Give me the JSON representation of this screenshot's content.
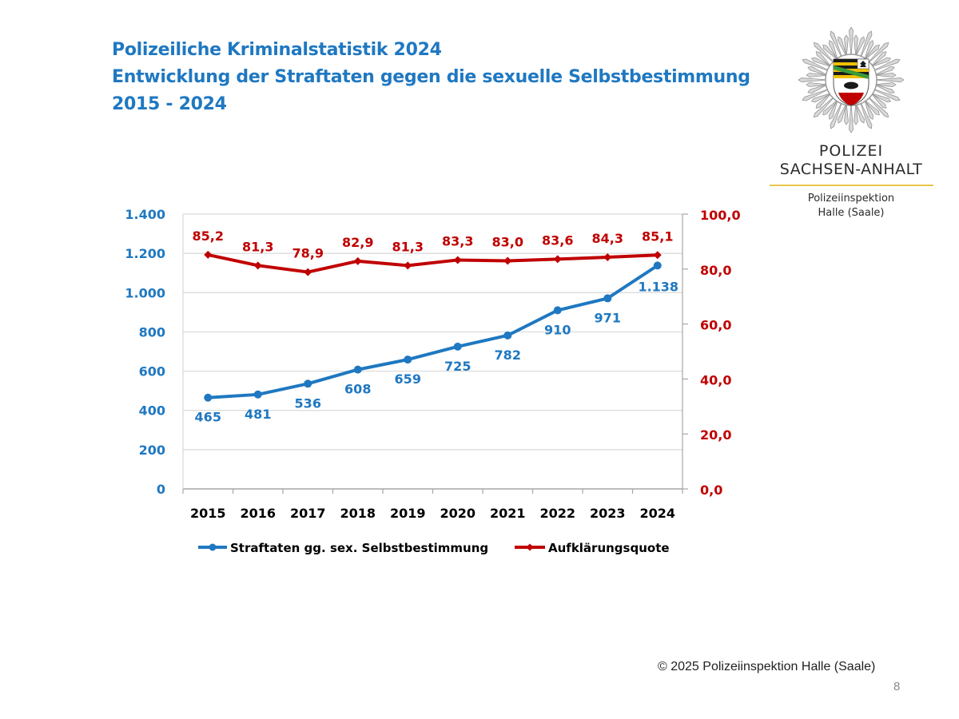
{
  "slide": {
    "title_lines": [
      "Polizeiliche Kriminalstatistik 2024",
      "Entwicklung der Straftaten gegen die sexuelle Selbstbestimmung",
      "2015 - 2024"
    ],
    "logo": {
      "line1": "POLIZEI",
      "line2": "SACHSEN-ANHALT",
      "line3": "Polizeiinspektion",
      "line4": "Halle (Saale)"
    },
    "footer": "© 2025 Polizeiinspektion Halle (Saale)",
    "page_number": "8"
  },
  "chart_data": {
    "type": "line",
    "title": "",
    "categories": [
      "2015",
      "2016",
      "2017",
      "2018",
      "2019",
      "2020",
      "2021",
      "2022",
      "2023",
      "2024"
    ],
    "series": [
      {
        "name": "Straftaten gg. sex. Selbstbestimmung",
        "axis": "left",
        "color": "#1f78c1",
        "values": [
          465,
          481,
          536,
          608,
          659,
          725,
          782,
          910,
          971,
          1138
        ],
        "labels": [
          "465",
          "481",
          "536",
          "608",
          "659",
          "725",
          "782",
          "910",
          "971",
          "1.138"
        ],
        "label_position": "below"
      },
      {
        "name": "Aufklärungsquote",
        "axis": "right",
        "color": "#c00000",
        "values": [
          85.2,
          81.3,
          78.9,
          82.9,
          81.3,
          83.3,
          83.0,
          83.6,
          84.3,
          85.1
        ],
        "labels": [
          "85,2",
          "81,3",
          "78,9",
          "82,9",
          "81,3",
          "83,3",
          "83,0",
          "83,6",
          "84,3",
          "85,1"
        ],
        "label_position": "above"
      }
    ],
    "left_axis": {
      "range": [
        0,
        1400
      ],
      "ticks": [
        0,
        200,
        400,
        600,
        800,
        1000,
        1200,
        1400
      ],
      "tick_labels": [
        "0",
        "200",
        "400",
        "600",
        "800",
        "1.000",
        "1.200",
        "1.400"
      ],
      "color": "#1f78c1"
    },
    "right_axis": {
      "range": [
        0,
        100
      ],
      "ticks": [
        0,
        20,
        40,
        60,
        80,
        100
      ],
      "tick_labels": [
        "0,0",
        "20,0",
        "40,0",
        "60,0",
        "80,0",
        "100,0"
      ],
      "color": "#c00000"
    },
    "grid": true,
    "legend": {
      "placement": "bottom",
      "entries": [
        "Straftaten gg. sex. Selbstbestimmung",
        "Aufklärungsquote"
      ]
    }
  }
}
